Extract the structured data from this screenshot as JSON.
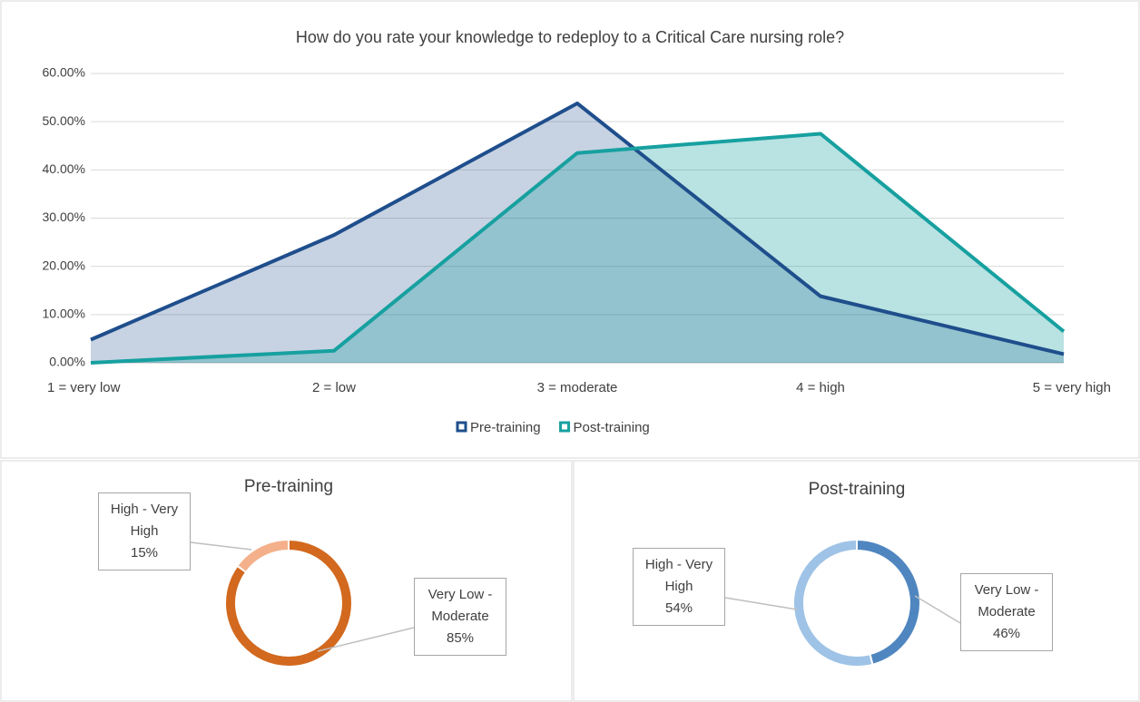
{
  "chart_data": [
    {
      "type": "area",
      "title": "How do you rate your knowledge to redeploy to a Critical Care nursing role?",
      "categories": [
        "1 = very low",
        "2 = low",
        "3 = moderate",
        "4 = high",
        "5 = very high"
      ],
      "series": [
        {
          "name": "Pre-training",
          "color": "#1f4e8c",
          "values": [
            4.8,
            26.5,
            53.8,
            13.8,
            1.8
          ]
        },
        {
          "name": "Post-training",
          "color": "#17a0a0",
          "values": [
            0,
            2.5,
            43.5,
            47.5,
            6.5
          ]
        }
      ],
      "ylim": [
        0,
        60
      ],
      "yticks": [
        {
          "value": 0,
          "label": "0.00%"
        },
        {
          "value": 10,
          "label": "10.00%"
        },
        {
          "value": 20,
          "label": "20.00%"
        },
        {
          "value": 30,
          "label": "30.00%"
        },
        {
          "value": 40,
          "label": "40.00%"
        },
        {
          "value": 50,
          "label": "50.00%"
        },
        {
          "value": 60,
          "label": "60.00%"
        }
      ],
      "grid": true,
      "legend": "bottom"
    },
    {
      "type": "donut",
      "title": "Pre-training",
      "categories": [
        "Very Low - Moderate",
        "High - Very High"
      ],
      "values": [
        85,
        15
      ],
      "value_labels": [
        "85%",
        "15%"
      ],
      "colors": [
        "#d2691e",
        "#f4b08a"
      ]
    },
    {
      "type": "donut",
      "title": "Post-training",
      "categories": [
        "Very Low - Moderate",
        "High - Very High"
      ],
      "values": [
        46,
        54
      ],
      "value_labels": [
        "46%",
        "54%"
      ],
      "colors": [
        "#4f86c0",
        "#9fc3e6"
      ]
    }
  ]
}
